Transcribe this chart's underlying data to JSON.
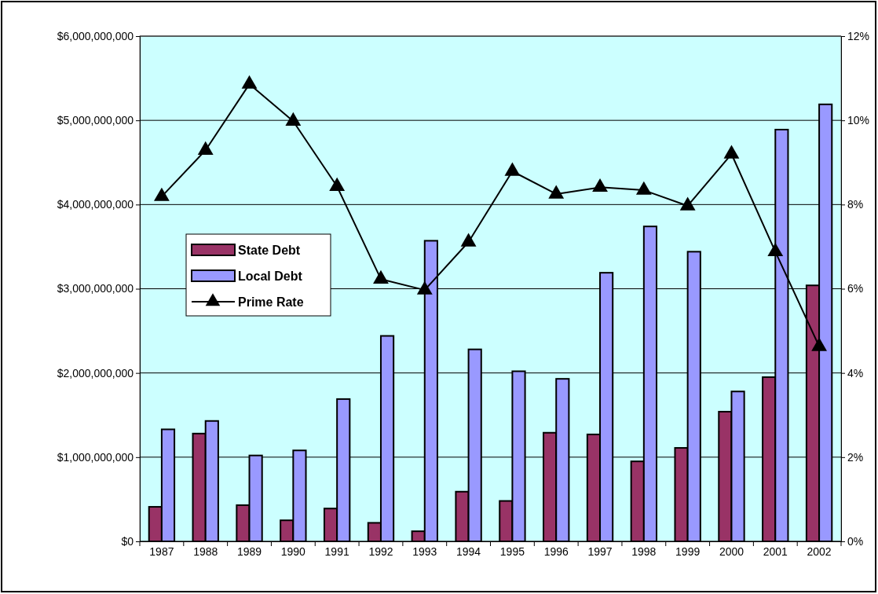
{
  "chart_data": {
    "type": "bar",
    "categories": [
      "1987",
      "1988",
      "1989",
      "1990",
      "1991",
      "1992",
      "1993",
      "1994",
      "1995",
      "1996",
      "1997",
      "1998",
      "1999",
      "2000",
      "2001",
      "2002"
    ],
    "series": [
      {
        "name": "State Debt",
        "color": "#993366",
        "values": [
          410000000,
          1280000000,
          430000000,
          250000000,
          390000000,
          220000000,
          120000000,
          590000000,
          480000000,
          1290000000,
          1270000000,
          950000000,
          1110000000,
          1540000000,
          1950000000,
          3040000000
        ]
      },
      {
        "name": "Local Debt",
        "color": "#9999ff",
        "values": [
          1330000000,
          1430000000,
          1020000000,
          1080000000,
          1690000000,
          2440000000,
          3570000000,
          2280000000,
          2020000000,
          1930000000,
          3190000000,
          3740000000,
          3440000000,
          1780000000,
          4890000000,
          5190000000
        ]
      },
      {
        "name": "Prime Rate",
        "type": "line",
        "axis": "y2",
        "color": "#000000",
        "marker": "triangle",
        "line_style": "solid",
        "values": [
          8.19,
          9.29,
          10.86,
          9.98,
          8.43,
          6.23,
          5.97,
          7.11,
          8.79,
          8.25,
          8.41,
          8.34,
          7.97,
          9.2,
          6.88,
          4.63
        ]
      }
    ],
    "ylim": [
      0,
      6000000000
    ],
    "yticks": [
      {
        "value": 0,
        "label": "$0"
      },
      {
        "value": 1000000000,
        "label": "$1,000,000,000"
      },
      {
        "value": 2000000000,
        "label": "$2,000,000,000"
      },
      {
        "value": 3000000000,
        "label": "$3,000,000,000"
      },
      {
        "value": 4000000000,
        "label": "$4,000,000,000"
      },
      {
        "value": 5000000000,
        "label": "$5,000,000,000"
      },
      {
        "value": 6000000000,
        "label": "$6,000,000,000"
      }
    ],
    "y2lim": [
      0,
      12
    ],
    "y2ticks": [
      {
        "value": 0,
        "label": "0%"
      },
      {
        "value": 2,
        "label": "2%"
      },
      {
        "value": 4,
        "label": "4%"
      },
      {
        "value": 6,
        "label": "6%"
      },
      {
        "value": 8,
        "label": "8%"
      },
      {
        "value": 10,
        "label": "10%"
      },
      {
        "value": 12,
        "label": "12%"
      }
    ],
    "grid": "y",
    "legend": "left"
  }
}
